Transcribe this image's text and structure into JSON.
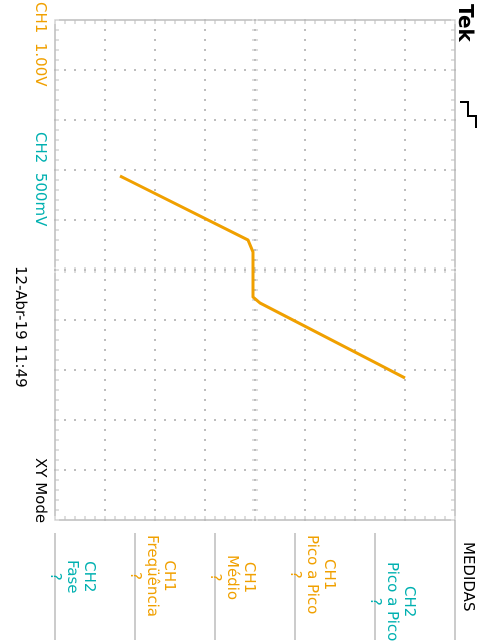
{
  "colors": {
    "ch1": "#f0a000",
    "ch2": "#00b0b0",
    "grid": "#bdbdbd",
    "frame": "#9a9a9a",
    "text": "#000000"
  },
  "header": {
    "brand": "Tek",
    "trigger_icon": "rising-edge-trigger-icon"
  },
  "status": {
    "ch1_scale": "CH1  1.00V",
    "ch2_scale": "CH2  500mV",
    "datetime": "12-Abr-19 11:49",
    "mode": "XY Mode"
  },
  "menu": {
    "title": "MEDIDAS",
    "items": [
      {
        "channel": "CH2",
        "measure": "Pico a Pico",
        "value": "?",
        "color": "cyan"
      },
      {
        "channel": "CH1",
        "measure": "Pico a Pico",
        "value": "?",
        "color": "orange"
      },
      {
        "channel": "CH1",
        "measure": "Médio",
        "value": "?",
        "color": "orange"
      },
      {
        "channel": "CH1",
        "measure": "Freqüência",
        "value": "?",
        "color": "orange"
      },
      {
        "channel": "CH2",
        "measure": "Fase",
        "value": "?",
        "color": "cyan"
      }
    ]
  },
  "trace": {
    "name": "CH1 vs CH2 (XY)"
  }
}
